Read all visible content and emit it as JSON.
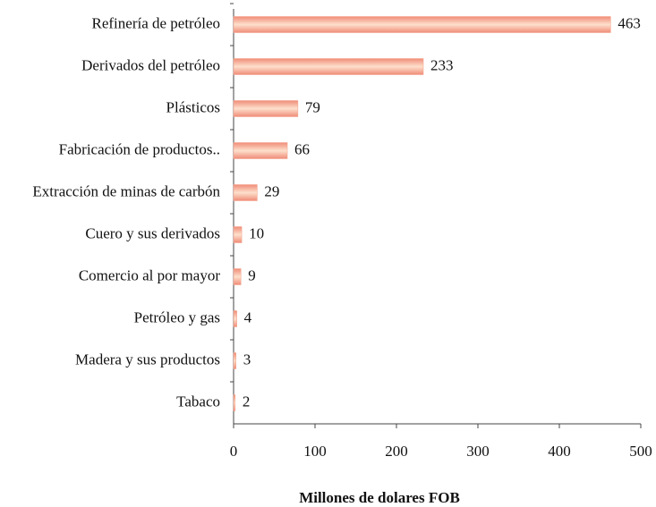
{
  "chart_data": {
    "type": "barh",
    "categories": [
      "Refinería de petróleo",
      "Derivados del petróleo",
      "Plásticos",
      "Fabricación de productos..",
      "Extracción de minas de carbón",
      "Cuero y sus derivados",
      "Comercio al por mayor",
      "Petróleo y gas",
      "Madera y sus productos",
      "Tabaco"
    ],
    "values": [
      463,
      233,
      79,
      66,
      29,
      10,
      9,
      4,
      3,
      2
    ],
    "color": "#f4a088",
    "xlabel": "Millones de dolares FOB",
    "xlim": [
      0,
      500
    ],
    "xticks": [
      0,
      100,
      200,
      300,
      400,
      500
    ],
    "grid": false
  }
}
